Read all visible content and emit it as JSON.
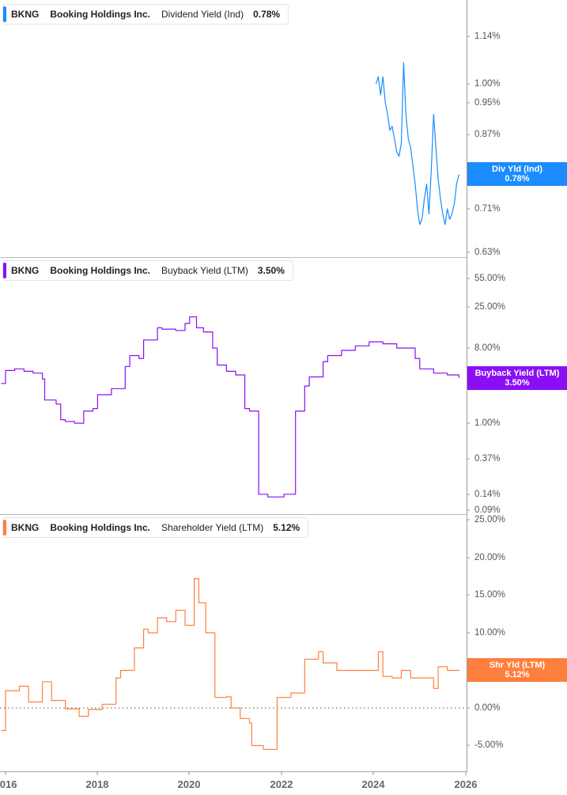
{
  "ticker": "BKNG",
  "company": "Booking Holdings Inc.",
  "panels": [
    {
      "metric": "Dividend Yield (Ind)",
      "value": "0.78%",
      "color": "#1a8cff",
      "tag_label": "Div Yld (Ind)",
      "tag_value": "0.78%",
      "yticks": [
        "1.14%",
        "1.00%",
        "0.95%",
        "0.87%",
        "0.79%",
        "0.71%",
        "0.63%"
      ]
    },
    {
      "metric": "Buyback Yield (LTM)",
      "value": "3.50%",
      "color": "#8a0ff5",
      "tag_label": "Buyback Yield (LTM)",
      "tag_value": "3.50%",
      "yticks": [
        "55.00%",
        "25.00%",
        "8.00%",
        "3.00%",
        "1.00%",
        "0.37%",
        "0.14%",
        "0.09%"
      ]
    },
    {
      "metric": "Shareholder Yield (LTM)",
      "value": "5.12%",
      "color": "#ff7f3f",
      "tag_label": "Shr Yld (LTM)",
      "tag_value": "5.12%",
      "yticks": [
        "25.00%",
        "20.00%",
        "15.00%",
        "10.00%",
        "5.00%",
        "0.00%",
        "-5.00%"
      ]
    }
  ],
  "xaxis": {
    "ticks": [
      "2016",
      "2018",
      "2020",
      "2022",
      "2024",
      "2026"
    ]
  },
  "chart_data": [
    {
      "type": "line",
      "title": "BKNG Booking Holdings Inc. Dividend Yield (Ind) 0.78%",
      "xlabel": "",
      "ylabel": "Dividend Yield (%)",
      "yscale": "log",
      "ylim": [
        0.62,
        1.2
      ],
      "yticks": [
        1.14,
        1.0,
        0.95,
        0.87,
        0.79,
        0.71,
        0.63
      ],
      "series": [
        {
          "name": "Dividend Yield (Ind)",
          "color": "#1a8cff",
          "x": [
            2024.05,
            2024.1,
            2024.15,
            2024.2,
            2024.25,
            2024.3,
            2024.35,
            2024.4,
            2024.45,
            2024.5,
            2024.55,
            2024.6,
            2024.65,
            2024.7,
            2024.75,
            2024.8,
            2024.85,
            2024.9,
            2024.95,
            2025.0,
            2025.05,
            2025.1,
            2025.15,
            2025.2,
            2025.25,
            2025.3,
            2025.35,
            2025.4,
            2025.45,
            2025.5,
            2025.55,
            2025.6,
            2025.65,
            2025.7,
            2025.75,
            2025.8,
            2025.85
          ],
          "y": [
            1.0,
            1.02,
            0.97,
            1.02,
            0.95,
            0.92,
            0.88,
            0.89,
            0.86,
            0.83,
            0.82,
            0.85,
            1.06,
            0.92,
            0.86,
            0.84,
            0.8,
            0.76,
            0.71,
            0.68,
            0.69,
            0.73,
            0.76,
            0.7,
            0.79,
            0.92,
            0.84,
            0.77,
            0.73,
            0.7,
            0.68,
            0.71,
            0.69,
            0.7,
            0.72,
            0.76,
            0.78
          ]
        }
      ]
    },
    {
      "type": "line",
      "title": "BKNG Booking Holdings Inc. Buyback Yield (LTM) 3.50%",
      "xlabel": "",
      "ylabel": "Buyback Yield (%)",
      "yscale": "log",
      "ylim": [
        0.085,
        60
      ],
      "yticks": [
        55,
        25,
        8,
        3,
        1,
        0.37,
        0.14,
        0.09
      ],
      "series": [
        {
          "name": "Buyback Yield (LTM)",
          "color": "#8a0ff5",
          "x": [
            2015.9,
            2016.0,
            2016.2,
            2016.4,
            2016.6,
            2016.8,
            2016.85,
            2017.1,
            2017.2,
            2017.3,
            2017.5,
            2017.7,
            2017.9,
            2018.0,
            2018.3,
            2018.6,
            2018.7,
            2018.9,
            2019.0,
            2019.3,
            2019.4,
            2019.7,
            2019.9,
            2020.0,
            2020.15,
            2020.3,
            2020.5,
            2020.6,
            2020.8,
            2021.0,
            2021.2,
            2021.3,
            2021.5,
            2021.7,
            2021.9,
            2022.05,
            2022.3,
            2022.5,
            2022.6,
            2022.9,
            2023.0,
            2023.3,
            2023.6,
            2023.9,
            2024.2,
            2024.5,
            2024.9,
            2025.0,
            2025.3,
            2025.6,
            2025.85
          ],
          "y": [
            3.0,
            4.3,
            4.5,
            4.2,
            4.0,
            3.4,
            1.9,
            1.7,
            1.1,
            1.05,
            1.0,
            1.4,
            1.5,
            2.2,
            2.6,
            4.8,
            6.5,
            6.0,
            10,
            14,
            13.5,
            13.0,
            15.8,
            19,
            14,
            12.5,
            8.0,
            5.0,
            4.2,
            3.8,
            1.5,
            1.4,
            0.14,
            0.13,
            0.13,
            0.14,
            1.4,
            2.8,
            3.6,
            5.5,
            6.5,
            7.5,
            8.5,
            9.5,
            9.0,
            8.0,
            6.0,
            4.5,
            4.0,
            3.8,
            3.5
          ]
        }
      ]
    },
    {
      "type": "line",
      "title": "BKNG Booking Holdings Inc. Shareholder Yield (LTM) 5.12%",
      "xlabel": "",
      "ylabel": "Shareholder Yield (%)",
      "yscale": "linear",
      "ylim": [
        -8,
        25
      ],
      "yticks": [
        25,
        20,
        15,
        10,
        5,
        0,
        -5
      ],
      "series": [
        {
          "name": "Shareholder Yield (LTM)",
          "color": "#ff7f3f",
          "x": [
            2015.9,
            2016.0,
            2016.3,
            2016.5,
            2016.8,
            2017.0,
            2017.3,
            2017.6,
            2017.8,
            2018.1,
            2018.4,
            2018.5,
            2018.8,
            2019.0,
            2019.1,
            2019.3,
            2019.5,
            2019.7,
            2019.9,
            2020.1,
            2020.2,
            2020.35,
            2020.5,
            2020.55,
            2020.8,
            2020.9,
            2021.1,
            2021.3,
            2021.35,
            2021.6,
            2021.9,
            2022.2,
            2022.4,
            2022.5,
            2022.8,
            2022.9,
            2023.2,
            2023.5,
            2023.8,
            2024.1,
            2024.2,
            2024.4,
            2024.6,
            2024.8,
            2025.0,
            2025.3,
            2025.4,
            2025.6,
            2025.85
          ],
          "y": [
            -3.0,
            2.3,
            2.9,
            0.8,
            3.5,
            1.0,
            -0.1,
            -1.1,
            -0.2,
            0.5,
            4.0,
            5.0,
            8.0,
            10.5,
            10.0,
            12.0,
            11.5,
            13.0,
            11.0,
            17.2,
            14.0,
            10.0,
            10.0,
            1.4,
            1.5,
            0.0,
            -1.4,
            -2.0,
            -5.0,
            -5.5,
            1.4,
            2.0,
            2.0,
            6.5,
            7.5,
            6.0,
            5.0,
            5.0,
            5.0,
            7.5,
            4.2,
            4.0,
            5.0,
            4.0,
            4.0,
            2.6,
            5.5,
            5.0,
            5.12
          ]
        }
      ]
    }
  ]
}
